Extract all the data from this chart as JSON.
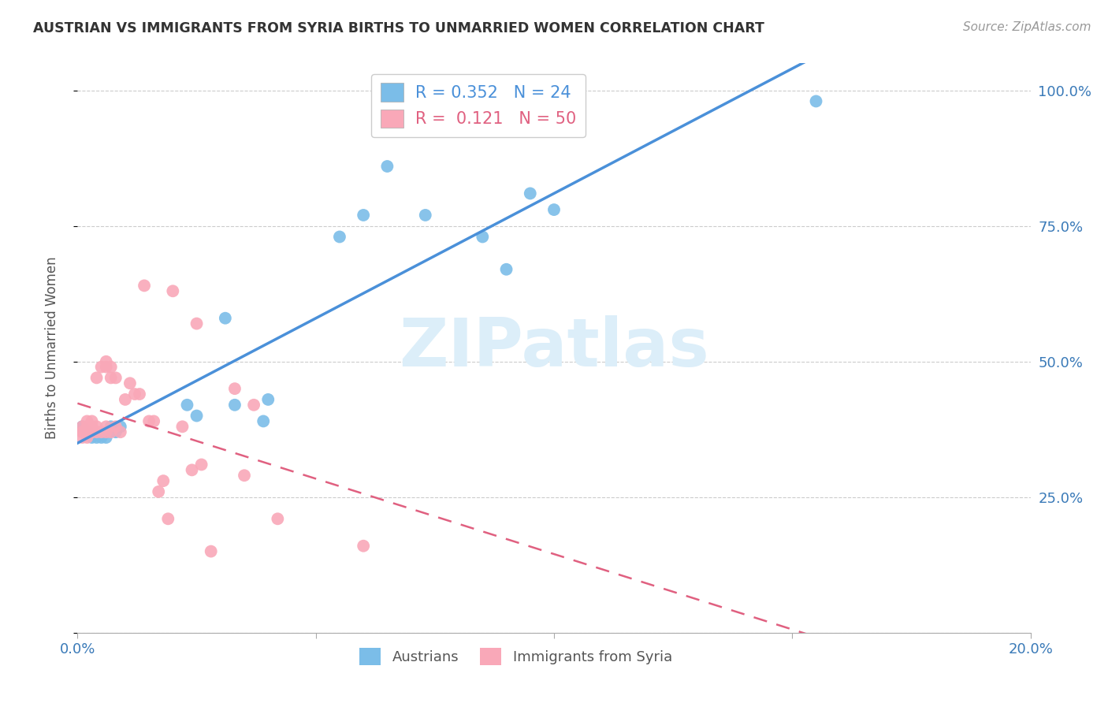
{
  "title": "AUSTRIAN VS IMMIGRANTS FROM SYRIA BIRTHS TO UNMARRIED WOMEN CORRELATION CHART",
  "source": "Source: ZipAtlas.com",
  "ylabel": "Births to Unmarried Women",
  "xlim": [
    0.0,
    0.2
  ],
  "ylim": [
    0.0,
    1.05
  ],
  "xticks": [
    0.0,
    0.05,
    0.1,
    0.15,
    0.2
  ],
  "xticklabels": [
    "0.0%",
    "",
    "",
    "",
    "20.0%"
  ],
  "yticks_right": [
    0.0,
    0.25,
    0.5,
    0.75,
    1.0
  ],
  "yticklabels_right": [
    "",
    "25.0%",
    "50.0%",
    "75.0%",
    "100.0%"
  ],
  "grid_color": "#cccccc",
  "background_color": "#ffffff",
  "austrians_color": "#7bbde8",
  "syria_color": "#f9a8b8",
  "regression_austrians_color": "#4a90d9",
  "regression_syria_color": "#e06080",
  "watermark_color": "#dceef9",
  "watermark": "ZIPatlas",
  "legend_R_austrians": "0.352",
  "legend_N_austrians": "24",
  "legend_R_syria": "0.121",
  "legend_N_syria": "50",
  "austrians_x": [
    0.001,
    0.002,
    0.003,
    0.004,
    0.005,
    0.006,
    0.007,
    0.008,
    0.009,
    0.023,
    0.025,
    0.031,
    0.033,
    0.039,
    0.04,
    0.055,
    0.06,
    0.065,
    0.073,
    0.085,
    0.09,
    0.095,
    0.1,
    0.155
  ],
  "austrians_y": [
    0.38,
    0.37,
    0.36,
    0.36,
    0.36,
    0.36,
    0.38,
    0.37,
    0.38,
    0.42,
    0.4,
    0.58,
    0.42,
    0.39,
    0.43,
    0.73,
    0.77,
    0.86,
    0.77,
    0.73,
    0.67,
    0.81,
    0.78,
    0.98
  ],
  "syria_x": [
    0.001,
    0.001,
    0.001,
    0.001,
    0.002,
    0.002,
    0.002,
    0.002,
    0.002,
    0.003,
    0.003,
    0.003,
    0.003,
    0.003,
    0.004,
    0.004,
    0.004,
    0.005,
    0.005,
    0.006,
    0.006,
    0.006,
    0.006,
    0.007,
    0.007,
    0.007,
    0.008,
    0.008,
    0.009,
    0.01,
    0.011,
    0.012,
    0.013,
    0.014,
    0.015,
    0.016,
    0.017,
    0.018,
    0.019,
    0.02,
    0.022,
    0.024,
    0.025,
    0.026,
    0.028,
    0.033,
    0.035,
    0.037,
    0.042,
    0.06
  ],
  "syria_y": [
    0.37,
    0.38,
    0.37,
    0.36,
    0.38,
    0.39,
    0.37,
    0.38,
    0.36,
    0.37,
    0.38,
    0.37,
    0.39,
    0.38,
    0.37,
    0.47,
    0.38,
    0.37,
    0.49,
    0.37,
    0.49,
    0.5,
    0.38,
    0.37,
    0.47,
    0.49,
    0.38,
    0.47,
    0.37,
    0.43,
    0.46,
    0.44,
    0.44,
    0.64,
    0.39,
    0.39,
    0.26,
    0.28,
    0.21,
    0.63,
    0.38,
    0.3,
    0.57,
    0.31,
    0.15,
    0.45,
    0.29,
    0.42,
    0.21,
    0.16
  ]
}
